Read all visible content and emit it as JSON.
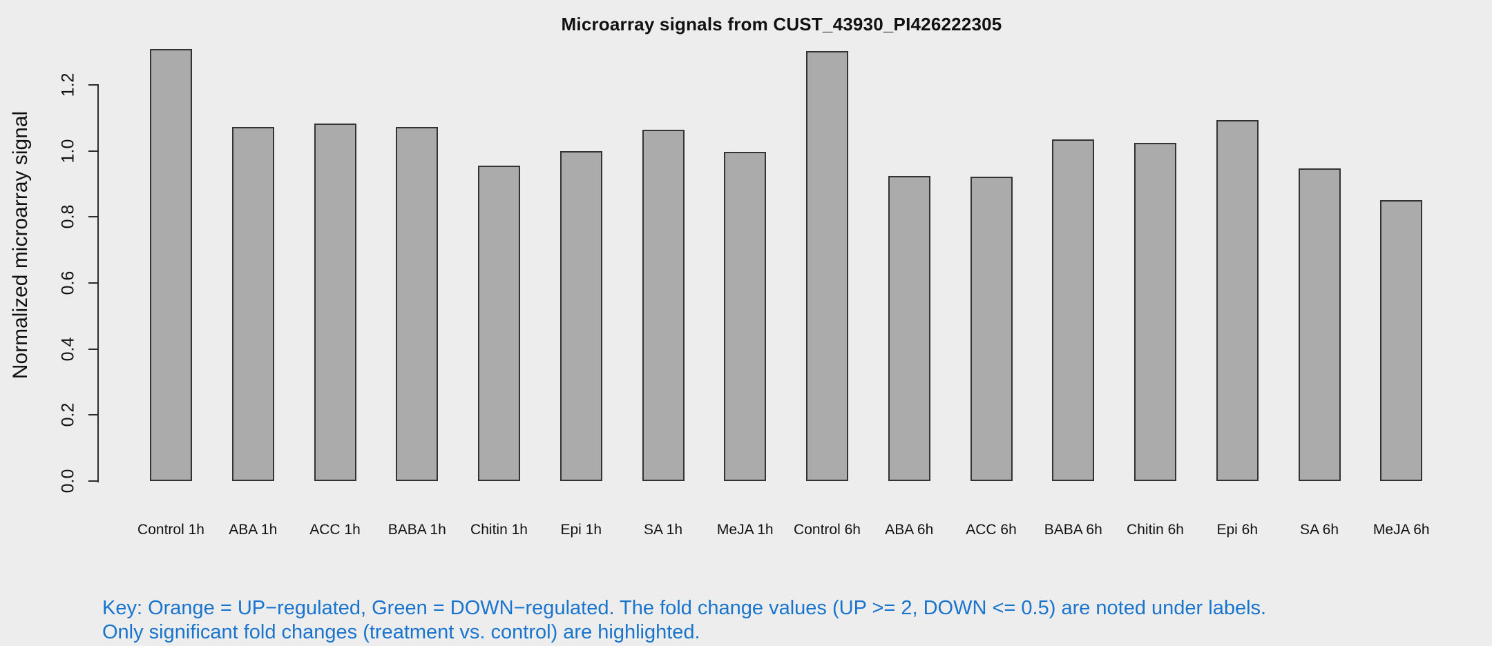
{
  "page": {
    "background_color": "#EDEDED",
    "text_color": "#111111"
  },
  "chart_data": {
    "type": "bar",
    "title": "Microarray signals from CUST_43930_PI426222305",
    "xlabel": "",
    "ylabel": "Normalized microarray signal",
    "categories": [
      "Control 1h",
      "ABA 1h",
      "ACC 1h",
      "BABA 1h",
      "Chitin 1h",
      "Epi 1h",
      "SA 1h",
      "MeJA 1h",
      "Control 6h",
      "ABA 6h",
      "ACC 6h",
      "BABA 6h",
      "Chitin 6h",
      "Epi 6h",
      "SA 6h",
      "MeJA 6h"
    ],
    "values": [
      1.309,
      1.072,
      1.084,
      1.072,
      0.955,
      1.0,
      1.065,
      0.997,
      1.302,
      0.925,
      0.921,
      1.034,
      1.025,
      1.093,
      0.947,
      0.851
    ],
    "ylim": [
      0,
      1.31
    ],
    "yticks": [
      0.0,
      0.2,
      0.4,
      0.6,
      0.8,
      1.0,
      1.2
    ],
    "ytick_labels": [
      "0.0",
      "0.2",
      "0.4",
      "0.6",
      "0.8",
      "1.0",
      "1.2"
    ],
    "grid": false,
    "legend_position": "none",
    "bar_fill": "#ABABAB",
    "bar_border": "#333333"
  },
  "footnote": {
    "line1": "Key: Orange = UP−regulated, Green = DOWN−regulated. The fold change values (UP >= 2, DOWN <= 0.5) are noted under labels.",
    "line2": "Only significant fold changes (treatment vs. control) are highlighted.",
    "color": "#1874CD"
  }
}
